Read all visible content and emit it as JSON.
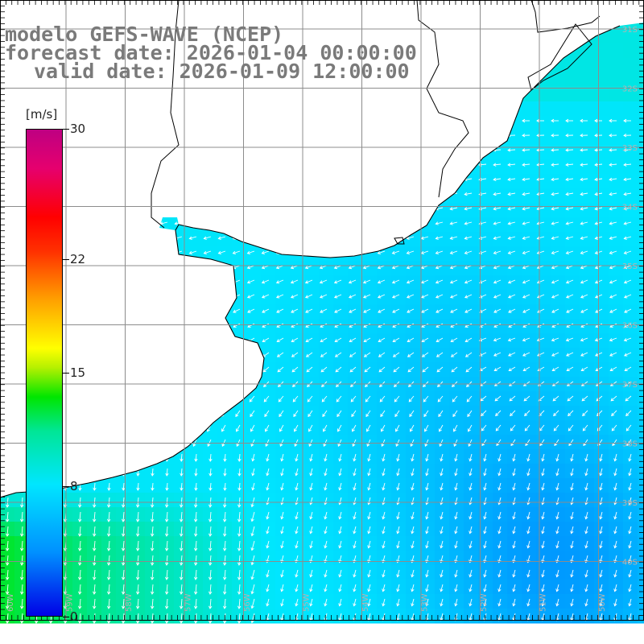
{
  "title": {
    "line1": "modelo GEFS-WAVE (NCEP)",
    "line2": "forecast date: 2026-01-04 00:00:00",
    "line3": "valid date: 2026-01-09 12:00:00"
  },
  "colorbar": {
    "units": "[m/s]",
    "ticks": [
      {
        "label": "30",
        "value": 30
      },
      {
        "label": "22",
        "value": 22
      },
      {
        "label": "15",
        "value": 15
      },
      {
        "label": "8",
        "value": 8
      },
      {
        "label": "0",
        "value": 0
      }
    ],
    "min": 0,
    "max": 30
  },
  "map": {
    "lat_labels": [
      "31S",
      "32S",
      "33S",
      "34S",
      "35S",
      "36S",
      "37S",
      "38S",
      "39S",
      "40S"
    ],
    "lon_labels": [
      "60W",
      "59W",
      "58W",
      "57W",
      "56W",
      "55W",
      "54W",
      "53W",
      "52W",
      "51W",
      "50W"
    ],
    "grid_color": "#8c8c8c",
    "coast_color": "#000000",
    "land_color": "#ffffff"
  }
}
